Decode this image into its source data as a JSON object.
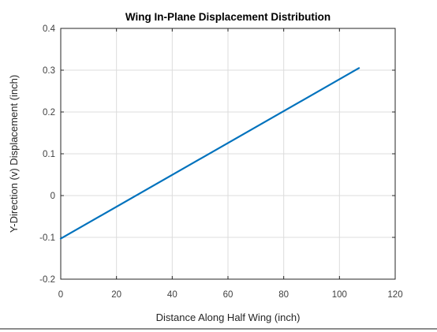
{
  "chart_data": {
    "type": "line",
    "title": "Wing In-Plane Displacement Distribution",
    "xlabel": "Distance Along Half Wing (inch)",
    "ylabel": "Y-Direction (v) Displacement (inch)",
    "xlim": [
      0,
      120
    ],
    "ylim": [
      -0.2,
      0.4
    ],
    "x_ticks": [
      "0",
      "20",
      "40",
      "60",
      "80",
      "100",
      "120"
    ],
    "y_ticks": [
      "-0.2",
      "-0.1",
      "0",
      "0.1",
      "0.2",
      "0.3",
      "0.4"
    ],
    "grid": true,
    "series": [
      {
        "x": [
          0,
          107
        ],
        "y": [
          -0.103,
          0.305
        ],
        "color": "#0072BD"
      }
    ]
  }
}
